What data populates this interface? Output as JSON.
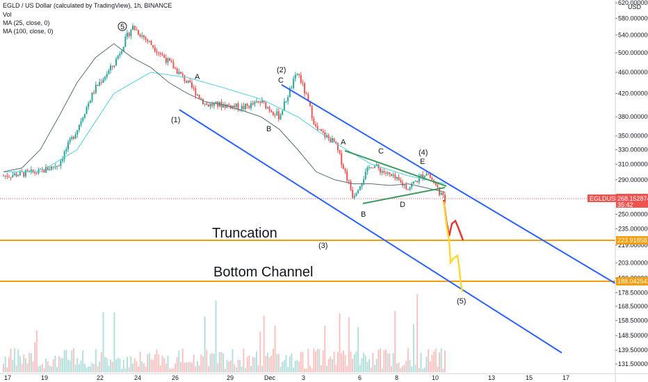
{
  "header": {
    "title": "EGLD / US Dollar (calculated by TradingView), 1h, BINANCE",
    "volume": "Vol",
    "ma25": "MA (25, close, 0)",
    "ma100": "MA (100, close, 0)"
  },
  "colors": {
    "candle_up": "#26a69a",
    "candle_down": "#ef5350",
    "ma25": "#546e7a",
    "ma100": "#4dd0e1",
    "channel": "#2962ff",
    "triangle": "#3c9a5f",
    "level": "#f59d0b",
    "projection_red": "#e53935",
    "projection_yellow": "#fdd835",
    "price_tag": "#ef5350"
  },
  "price_scale": {
    "currency": "USD",
    "ticks": [
      "620.000000",
      "580.000000",
      "540.000000",
      "500.000000",
      "460.000000",
      "420.000000",
      "380.000000",
      "350.000000",
      "330.000000",
      "310.000000",
      "290.000000",
      "270.000000",
      "250.000000",
      "235.000000",
      "219.000000",
      "203.000000",
      "190.000000",
      "178.500000",
      "168.500000",
      "158.500000",
      "148.500000",
      "139.500000",
      "131.500000"
    ],
    "current_symbol": "EGLDUSD",
    "current_price": "268.152874",
    "countdown": "35:42",
    "truncation_price": "223.918581",
    "bottom_price": "188.042541"
  },
  "time_axis": {
    "ticks": [
      "17",
      "19",
      "22",
      "24",
      "26",
      "29",
      "Dec",
      "3",
      "6",
      "8",
      "10",
      "13",
      "15",
      "17"
    ]
  },
  "annotations": {
    "truncation": "Truncation",
    "bottom_channel": "Bottom Channel",
    "w5_top": "5",
    "w1": "(1)",
    "w2": "(2)",
    "w3": "(3)",
    "w4": "(4)",
    "w5_target": "(5)",
    "a1": "A",
    "b1": "B",
    "c1": "C",
    "a2": "A",
    "b2": "B",
    "c2": "C",
    "d2": "D",
    "e2": "E"
  },
  "chart_data": {
    "type": "line",
    "symbol": "EGLDUSD",
    "interval": "1h",
    "y_scale": "log",
    "ylim": [
      128,
      620
    ],
    "x_ticks": [
      "17",
      "19",
      "22",
      "24",
      "26",
      "29",
      "Dec",
      "3",
      "6",
      "8",
      "10",
      "13",
      "15",
      "17"
    ],
    "series": [
      {
        "name": "MA (25, close, 0)",
        "x_index": [
          0,
          2,
          4,
          6,
          8,
          10,
          12,
          14,
          16,
          18,
          20,
          22,
          24,
          26,
          28,
          30,
          32,
          34,
          36,
          38,
          40,
          42,
          44,
          46,
          48
        ],
        "values": [
          300,
          305,
          330,
          380,
          440,
          490,
          520,
          490,
          470,
          440,
          420,
          405,
          400,
          390,
          380,
          360,
          330,
          300,
          290,
          285,
          285,
          283,
          285,
          280,
          275
        ]
      },
      {
        "name": "MA (100, close, 0)",
        "x_index": [
          0,
          4,
          8,
          12,
          16,
          20,
          24,
          28,
          32,
          36,
          40,
          44,
          48
        ],
        "values": [
          300,
          300,
          330,
          420,
          460,
          450,
          430,
          410,
          380,
          340,
          310,
          295,
          285
        ]
      }
    ],
    "price_path": {
      "x_index": [
        0,
        4,
        6,
        8,
        10,
        12,
        14,
        16,
        18,
        20,
        22,
        24,
        26,
        28,
        30,
        32,
        34,
        36,
        38,
        40,
        42,
        44,
        46,
        48
      ],
      "values": [
        295,
        300,
        310,
        360,
        430,
        475,
        560,
        520,
        480,
        440,
        400,
        400,
        395,
        405,
        380,
        460,
        360,
        340,
        270,
        310,
        295,
        280,
        300,
        265
      ]
    },
    "current_price": 268.152874,
    "levels": [
      {
        "label": "Truncation",
        "value": 223.918581
      },
      {
        "label": "Bottom Channel",
        "value": 188.042541
      }
    ],
    "wave_labels": [
      "5",
      "(1)",
      "(2)",
      "(3)",
      "(4)",
      "(5)",
      "A",
      "B",
      "C",
      "D",
      "E"
    ]
  }
}
